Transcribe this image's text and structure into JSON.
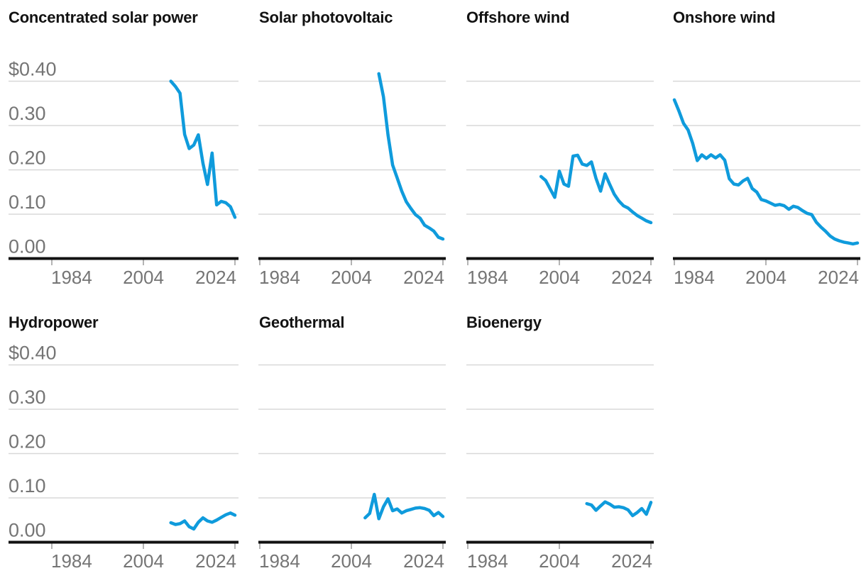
{
  "page": {
    "description": "Small multiples of line charts showing electricity cost ($ per kWh) over time for seven renewable energy technologies",
    "background": "#ffffff"
  },
  "colors": {
    "line": "#0f9bdc",
    "grid": "#d8d8d8",
    "axis": "#121212",
    "tick_mark": "#9b9b9b",
    "axis_label": "#757575",
    "title": "#121212"
  },
  "axes": {
    "y_tick_labels": [
      "$0.40",
      "0.30",
      "0.20",
      "0.10",
      "0.00"
    ],
    "y_tick_values": [
      0.4,
      0.3,
      0.2,
      0.1,
      0.0
    ],
    "x_tick_labels": [
      "1984",
      "2004",
      "2024"
    ],
    "x_tick_years": [
      1984,
      2004,
      2024
    ]
  },
  "chart_data": [
    {
      "type": "line",
      "title": "Concentrated solar power",
      "x_start": 2010,
      "x_end": 2024,
      "x_step": 1,
      "values": [
        0.4,
        0.388,
        0.373,
        0.28,
        0.248,
        0.256,
        0.279,
        0.215,
        0.167,
        0.238,
        0.121,
        0.129,
        0.126,
        0.117,
        0.093
      ],
      "ylim": [
        0,
        0.45
      ],
      "grid": true,
      "show_y_labels": true
    },
    {
      "type": "line",
      "title": "Solar photovoltaic",
      "x_start": 2010,
      "x_end": 2024,
      "x_step": 1,
      "values": [
        0.417,
        0.365,
        0.279,
        0.211,
        0.182,
        0.152,
        0.128,
        0.113,
        0.099,
        0.091,
        0.075,
        0.069,
        0.062,
        0.048,
        0.044
      ],
      "ylim": [
        0,
        0.45
      ],
      "grid": true,
      "show_y_labels": false
    },
    {
      "type": "line",
      "title": "Offshore wind",
      "x_start": 2000,
      "x_end": 2024,
      "x_step": 1,
      "values": [
        0.185,
        0.176,
        0.157,
        0.138,
        0.197,
        0.168,
        0.163,
        0.231,
        0.233,
        0.213,
        0.21,
        0.218,
        0.181,
        0.152,
        0.191,
        0.167,
        0.145,
        0.13,
        0.119,
        0.114,
        0.105,
        0.097,
        0.091,
        0.085,
        0.081
      ],
      "ylim": [
        0,
        0.45
      ],
      "grid": true,
      "show_y_labels": false
    },
    {
      "type": "line",
      "title": "Onshore wind",
      "x_start": 1984,
      "x_end": 2024,
      "x_step": 1,
      "values": [
        0.358,
        0.333,
        0.305,
        0.29,
        0.26,
        0.221,
        0.234,
        0.226,
        0.234,
        0.227,
        0.234,
        0.222,
        0.18,
        0.168,
        0.166,
        0.175,
        0.181,
        0.158,
        0.15,
        0.133,
        0.13,
        0.125,
        0.12,
        0.122,
        0.119,
        0.111,
        0.118,
        0.115,
        0.108,
        0.102,
        0.099,
        0.082,
        0.071,
        0.062,
        0.051,
        0.044,
        0.04,
        0.037,
        0.035,
        0.033,
        0.035
      ],
      "ylim": [
        0,
        0.45
      ],
      "grid": true,
      "show_y_labels": false
    },
    {
      "type": "line",
      "title": "Hydropower",
      "x_start": 2010,
      "x_end": 2024,
      "x_step": 1,
      "values": [
        0.044,
        0.04,
        0.042,
        0.048,
        0.035,
        0.03,
        0.045,
        0.055,
        0.048,
        0.045,
        0.05,
        0.056,
        0.062,
        0.066,
        0.061
      ],
      "ylim": [
        0,
        0.45
      ],
      "grid": true,
      "show_y_labels": true
    },
    {
      "type": "line",
      "title": "Geothermal",
      "x_start": 2007,
      "x_end": 2024,
      "x_step": 1,
      "values": [
        0.055,
        0.065,
        0.108,
        0.053,
        0.08,
        0.098,
        0.071,
        0.075,
        0.066,
        0.071,
        0.074,
        0.077,
        0.078,
        0.076,
        0.072,
        0.06,
        0.067,
        0.058
      ],
      "ylim": [
        0,
        0.45
      ],
      "grid": true,
      "show_y_labels": false
    },
    {
      "type": "line",
      "title": "Bioenergy",
      "x_start": 2010,
      "x_end": 2024,
      "x_step": 1,
      "values": [
        0.087,
        0.084,
        0.072,
        0.082,
        0.091,
        0.086,
        0.079,
        0.08,
        0.078,
        0.073,
        0.06,
        0.067,
        0.076,
        0.063,
        0.09
      ],
      "ylim": [
        0,
        0.45
      ],
      "grid": true,
      "show_y_labels": false
    }
  ]
}
